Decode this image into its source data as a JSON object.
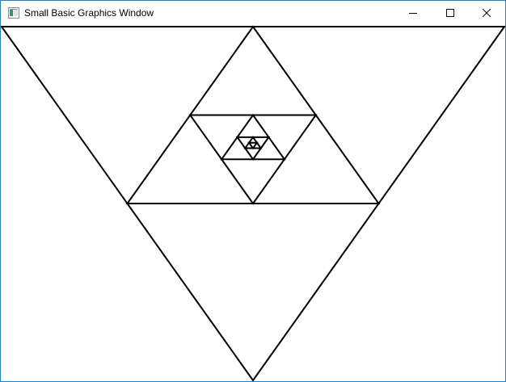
{
  "window": {
    "title": "Small Basic Graphics Window",
    "icon": "small-basic-window-icon",
    "accent_color": "#1883d7",
    "controls": {
      "minimize_icon": "minimize-icon",
      "maximize_icon": "maximize-icon",
      "close_icon": "close-icon"
    }
  },
  "canvas": {
    "background": "#ffffff",
    "stroke_color": "#000000",
    "shapes": [
      "outer-triangle",
      "midpoint-triangle-1",
      "midpoint-triangle-2",
      "midpoint-triangle-3",
      "midpoint-triangle-4",
      "midpoint-triangle-5",
      "midpoint-triangle-6"
    ]
  }
}
